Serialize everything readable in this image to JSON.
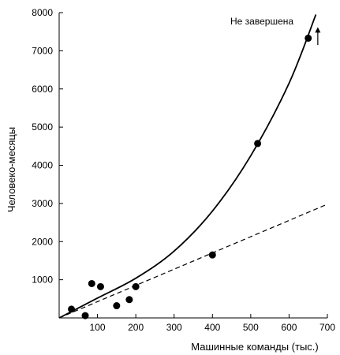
{
  "chart_data": {
    "type": "scatter",
    "title": "",
    "xlabel": "Машинные команды (тыс.)",
    "ylabel": "Человеко-месяцы",
    "xlim": [
      0,
      700
    ],
    "ylim": [
      0,
      8000
    ],
    "x_ticks": [
      100,
      200,
      300,
      400,
      500,
      600,
      700
    ],
    "y_ticks": [
      1000,
      2000,
      3000,
      4000,
      5000,
      6000,
      7000,
      8000
    ],
    "grid": false,
    "points": [
      {
        "x": 32,
        "y": 230
      },
      {
        "x": 68,
        "y": 60
      },
      {
        "x": 85,
        "y": 900
      },
      {
        "x": 108,
        "y": 820
      },
      {
        "x": 150,
        "y": 320
      },
      {
        "x": 183,
        "y": 480
      },
      {
        "x": 200,
        "y": 820
      },
      {
        "x": 400,
        "y": 1650
      },
      {
        "x": 518,
        "y": 4570
      },
      {
        "x": 650,
        "y": 7330
      }
    ],
    "fit_curve": [
      {
        "x": 0,
        "y": 0
      },
      {
        "x": 100,
        "y": 520
      },
      {
        "x": 200,
        "y": 1040
      },
      {
        "x": 300,
        "y": 1750
      },
      {
        "x": 400,
        "y": 2800
      },
      {
        "x": 500,
        "y": 4250
      },
      {
        "x": 600,
        "y": 6150
      },
      {
        "x": 670,
        "y": 7950
      }
    ],
    "trend_line": [
      {
        "x": 0,
        "y": 0
      },
      {
        "x": 700,
        "y": 2980
      }
    ],
    "annotation": {
      "text": "Не завершена",
      "arrow_x": 675,
      "arrow_from_y": 7150,
      "arrow_to_y": 7620
    }
  }
}
